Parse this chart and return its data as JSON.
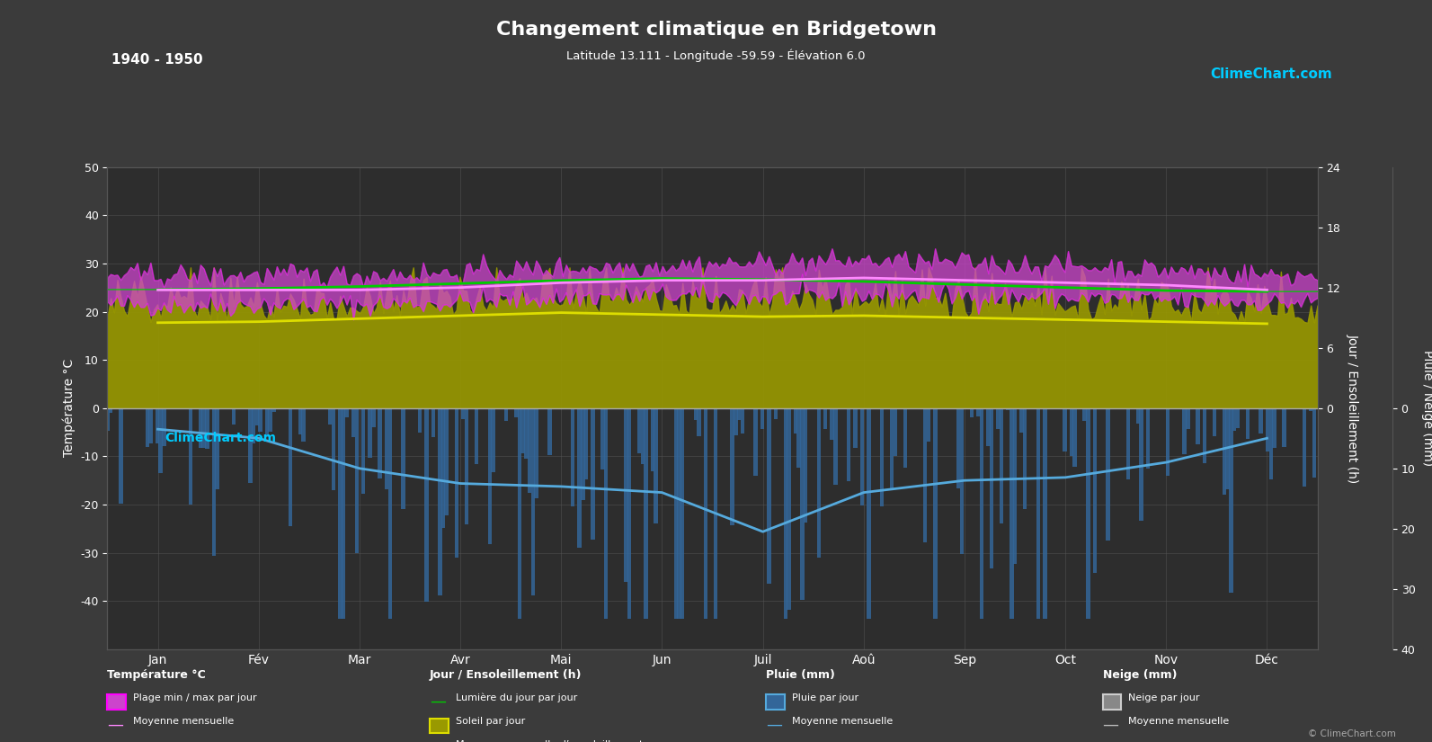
{
  "title": "Changement climatique en Bridgetown",
  "subtitle": "Latitude 13.111 - Longitude -59.59 - Élévation 6.0",
  "period": "1940 - 1950",
  "bg_color": "#3b3b3b",
  "plot_bg_color": "#2d2d2d",
  "grid_color": "#555555",
  "text_color": "#ffffff",
  "months": [
    "Jan",
    "Fév",
    "Mar",
    "Avr",
    "Mai",
    "Jun",
    "Juil",
    "Aoû",
    "Sep",
    "Oct",
    "Nov",
    "Déc"
  ],
  "temp_ylim": [
    -50,
    50
  ],
  "temp_yticks": [
    -40,
    -30,
    -20,
    -10,
    0,
    10,
    20,
    30,
    40,
    50
  ],
  "sun_ylim": [
    0,
    24
  ],
  "sun_yticks": [
    0,
    6,
    12,
    18,
    24
  ],
  "rain_ylim_mm": [
    0,
    40
  ],
  "rain_yticks_mm": [
    0,
    10,
    20,
    30,
    40
  ],
  "temp_min_monthly": [
    21.5,
    21.5,
    21.5,
    22.0,
    23.0,
    23.5,
    23.0,
    23.5,
    23.5,
    23.0,
    22.5,
    22.0
  ],
  "temp_max_monthly": [
    27.5,
    27.5,
    27.5,
    28.0,
    29.0,
    29.5,
    30.0,
    30.5,
    30.0,
    29.5,
    28.5,
    27.5
  ],
  "temp_mean_monthly": [
    24.5,
    24.5,
    24.5,
    25.0,
    26.0,
    26.5,
    26.5,
    27.0,
    26.5,
    26.0,
    25.5,
    24.5
  ],
  "daylight_monthly": [
    11.8,
    11.9,
    12.1,
    12.4,
    12.7,
    12.9,
    12.8,
    12.6,
    12.3,
    12.0,
    11.7,
    11.6
  ],
  "sunshine_monthly": [
    8.5,
    8.6,
    8.9,
    9.2,
    9.5,
    9.3,
    9.1,
    9.2,
    9.0,
    8.8,
    8.6,
    8.4
  ],
  "rain_mean_monthly_mm": [
    3.5,
    5.0,
    10.0,
    12.5,
    13.0,
    14.0,
    20.5,
    14.0,
    12.0,
    11.5,
    9.0,
    5.0
  ],
  "temp_fill_color": "#cc44cc",
  "temp_min_color": "#ff00ff",
  "temp_max_color": "#ff00ff",
  "temp_mean_color": "#ff88ff",
  "daylight_color": "#00cc00",
  "sunshine_fill_color": "#999900",
  "sunshine_line_color": "#dddd00",
  "rain_bar_color": "#336699",
  "rain_mean_color": "#55aadd",
  "snow_bar_color": "#888888",
  "snow_mean_color": "#bbbbbb",
  "logo_text": "ClimeChart.com",
  "copyright_text": "© ClimeChart.com",
  "ylabel_left": "Température °C",
  "ylabel_right1": "Jour / Ensoleillement (h)",
  "ylabel_right2": "Pluie / Neige (mm)",
  "legend_categories": [
    "Température °C",
    "Jour / Ensoleillement (h)",
    "Pluie (mm)",
    "Neige (mm)"
  ],
  "legend_items": [
    [
      "Plage min / max par jour",
      "Moyenne mensuelle"
    ],
    [
      "Lumière du jour par jour",
      "Soleil par jour",
      "Moyenne mensuelle d’ensoleillement"
    ],
    [
      "Pluie par jour",
      "Moyenne mensuelle"
    ],
    [
      "Neige par jour",
      "Moyenne mensuelle"
    ]
  ]
}
